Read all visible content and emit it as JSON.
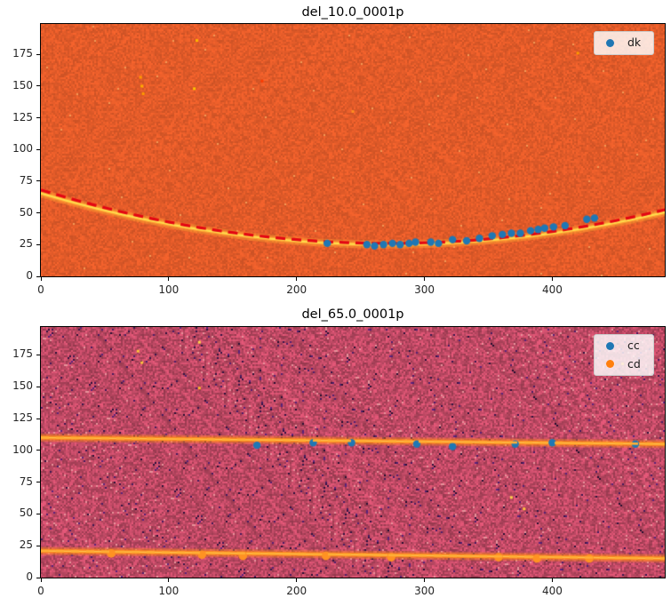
{
  "figure": {
    "background": "#ffffff"
  },
  "chart_data": [
    {
      "type": "heatmap",
      "title": "del_10.0_0001p",
      "xlabel": "",
      "ylabel": "",
      "xlim": [
        0,
        488
      ],
      "ylim": [
        0,
        199
      ],
      "xticks": [
        0,
        100,
        200,
        300,
        400
      ],
      "yticks": [
        0,
        25,
        50,
        75,
        100,
        125,
        150,
        175
      ],
      "grid": false,
      "legend_position": "upper right",
      "colors": {
        "background": "#e25b29",
        "curve_core": "#ffdf4e",
        "curve_glow": "#ffa433",
        "fit_dash": "#e30613",
        "scatter": "#1f77b4"
      },
      "noise": {
        "amp": 0.1,
        "dark": null,
        "dark_p": 0,
        "light": "#f29a55",
        "light_p": 0.002
      },
      "curve": {
        "shape": "parabola",
        "vertex_x": 272,
        "vertex_y": 25,
        "a": 0.000547,
        "description": "bright yellow emission trace, y=65 at x=0 dipping to 25 near x=272 then rising to ~51 at x=488"
      },
      "fit": {
        "shape": "parabola",
        "vertex_x": 272,
        "vertex_y": 26,
        "a": 0.00057,
        "style": "dashed red fit line over full x range"
      },
      "series": [
        {
          "name": "dk",
          "color": "#1f77b4",
          "marker": "circle",
          "marker_r": 4.2,
          "points": [
            [
              224,
              26
            ],
            [
              255,
              25
            ],
            [
              261,
              24
            ],
            [
              268,
              25
            ],
            [
              275,
              26
            ],
            [
              281,
              25
            ],
            [
              288,
              26
            ],
            [
              293,
              27
            ],
            [
              305,
              27
            ],
            [
              311,
              26
            ],
            [
              322,
              29
            ],
            [
              333,
              28
            ],
            [
              343,
              30
            ],
            [
              353,
              32
            ],
            [
              361,
              33
            ],
            [
              368,
              34
            ],
            [
              375,
              34
            ],
            [
              383,
              36
            ],
            [
              389,
              37
            ],
            [
              394,
              38
            ],
            [
              401,
              39
            ],
            [
              410,
              40
            ],
            [
              427,
              45
            ],
            [
              433,
              46
            ]
          ]
        }
      ],
      "legend": {
        "entries": [
          {
            "label": "dk",
            "color": "#1f77b4"
          }
        ]
      },
      "speckles": [
        {
          "x": 122,
          "y": 186,
          "c": "#ffb300"
        },
        {
          "x": 78,
          "y": 157,
          "c": "#ff9a00"
        },
        {
          "x": 79,
          "y": 150,
          "c": "#ffae00"
        },
        {
          "x": 80,
          "y": 144,
          "c": "#ff9a00"
        },
        {
          "x": 120,
          "y": 148,
          "c": "#ffc400"
        },
        {
          "x": 173,
          "y": 154,
          "c": "#ff3b00"
        },
        {
          "x": 420,
          "y": 176,
          "c": "#ff9a00"
        },
        {
          "x": 244,
          "y": 130,
          "c": "#ff8d20"
        }
      ]
    },
    {
      "type": "heatmap",
      "title": "del_65.0_0001p",
      "xlabel": "",
      "ylabel": "",
      "xlim": [
        0,
        488
      ],
      "ylim": [
        0,
        197
      ],
      "xticks": [
        0,
        100,
        200,
        300,
        400
      ],
      "yticks": [
        0,
        25,
        50,
        75,
        100,
        125,
        150,
        175
      ],
      "grid": false,
      "legend_position": "upper right",
      "colors": {
        "background": "#be4964",
        "band_core": "#ff8c1a",
        "band_bright": "#ffc34d",
        "band_dash": "#ffaf36",
        "scatter_cc": "#1f77b4",
        "scatter_cd": "#ff9222"
      },
      "noise": {
        "amp": 0.22,
        "dark": "#4a1c66",
        "dark_p": 0.02,
        "light": "#e8939b",
        "light_p": 0.012
      },
      "lines": [
        {
          "y_left": 110,
          "y_right": 105,
          "description": "upper orange emission band with dashed fit overlay"
        },
        {
          "y_left": 21,
          "y_right": 15,
          "description": "lower orange emission band with dashed fit overlay"
        }
      ],
      "series": [
        {
          "name": "cc",
          "color": "#1f77b4",
          "marker": "circle",
          "marker_r": 4.2,
          "points": [
            [
              169,
              104
            ],
            [
              213,
              106
            ],
            [
              243,
              106
            ],
            [
              294,
              105
            ],
            [
              322,
              103
            ],
            [
              371,
              105
            ],
            [
              400,
              106
            ],
            [
              465,
              105
            ]
          ]
        },
        {
          "name": "cd",
          "color": "#ff9222",
          "marker": "circle",
          "marker_r": 4.8,
          "points": [
            [
              55,
              19
            ],
            [
              126,
              18
            ],
            [
              158,
              17
            ],
            [
              223,
              17
            ],
            [
              274,
              16
            ],
            [
              358,
              16
            ],
            [
              388,
              15
            ],
            [
              429,
              15
            ]
          ]
        }
      ],
      "legend": {
        "entries": [
          {
            "label": "cc",
            "color": "#1f77b4"
          },
          {
            "label": "cd",
            "color": "#ff7f0e"
          }
        ]
      },
      "speckles": [
        {
          "x": 124,
          "y": 185,
          "c": "#ffd24a"
        },
        {
          "x": 76,
          "y": 178,
          "c": "#ffc43e"
        },
        {
          "x": 79,
          "y": 169,
          "c": "#ffc43e"
        },
        {
          "x": 124,
          "y": 149,
          "c": "#ffb82e"
        },
        {
          "x": 368,
          "y": 63,
          "c": "#ffd24a"
        },
        {
          "x": 378,
          "y": 54,
          "c": "#ffc43e"
        },
        {
          "x": 455,
          "y": 168,
          "c": "#ff9a2e"
        }
      ]
    }
  ]
}
